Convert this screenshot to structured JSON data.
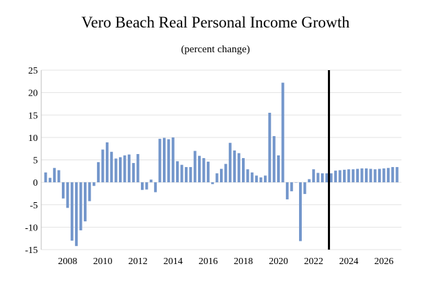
{
  "chart_data": {
    "type": "bar",
    "title": "Vero Beach Real Personal Income Growth",
    "subtitle": "(percent change)",
    "xlabel": "",
    "ylabel": "",
    "ylim": [
      -15,
      25
    ],
    "yticks": [
      25,
      20,
      15,
      10,
      5,
      0,
      -5,
      -10,
      -15
    ],
    "xtick_labels": [
      "2008",
      "2010",
      "2012",
      "2014",
      "2016",
      "2018",
      "2020",
      "2022",
      "2024",
      "2026"
    ],
    "grid": "horizontal",
    "legend": "none",
    "bar_color": "#7396CB",
    "marker_color": "#000000",
    "forecast_start": "2023 Q3",
    "quarters": [
      "2007 Q2",
      "2007 Q3",
      "2007 Q4",
      "2008 Q1",
      "2008 Q2",
      "2008 Q3",
      "2008 Q4",
      "2009 Q1",
      "2009 Q2",
      "2009 Q3",
      "2009 Q4",
      "2010 Q1",
      "2010 Q2",
      "2010 Q3",
      "2010 Q4",
      "2011 Q1",
      "2011 Q2",
      "2011 Q3",
      "2011 Q4",
      "2012 Q1",
      "2012 Q2",
      "2012 Q3",
      "2012 Q4",
      "2013 Q1",
      "2013 Q2",
      "2013 Q3",
      "2013 Q4",
      "2014 Q1",
      "2014 Q2",
      "2014 Q3",
      "2014 Q4",
      "2015 Q1",
      "2015 Q2",
      "2015 Q3",
      "2015 Q4",
      "2016 Q1",
      "2016 Q2",
      "2016 Q3",
      "2016 Q4",
      "2017 Q1",
      "2017 Q2",
      "2017 Q3",
      "2017 Q4",
      "2018 Q1",
      "2018 Q2",
      "2018 Q3",
      "2018 Q4",
      "2019 Q1",
      "2019 Q2",
      "2019 Q3",
      "2019 Q4",
      "2020 Q1",
      "2020 Q2",
      "2020 Q3",
      "2020 Q4",
      "2021 Q1",
      "2021 Q2",
      "2021 Q3",
      "2021 Q4",
      "2022 Q1",
      "2022 Q2",
      "2022 Q3",
      "2022 Q4",
      "2023 Q1",
      "2023 Q2",
      "2023 Q3",
      "2023 Q4",
      "2024 Q1",
      "2024 Q2",
      "2024 Q3",
      "2024 Q4",
      "2025 Q1",
      "2025 Q2",
      "2025 Q3",
      "2025 Q4",
      "2026 Q1",
      "2026 Q2",
      "2026 Q3",
      "2026 Q4",
      "2027 Q1",
      "2027 Q2"
    ],
    "values": [
      2.2,
      1.0,
      3.2,
      2.7,
      -3.6,
      -5.7,
      -13.0,
      -14.2,
      -10.7,
      -8.7,
      -4.2,
      -0.8,
      4.5,
      7.3,
      8.9,
      6.8,
      5.3,
      5.6,
      6.0,
      6.2,
      4.3,
      6.3,
      -1.7,
      -1.6,
      0.6,
      -2.2,
      9.7,
      9.9,
      9.6,
      10.0,
      4.7,
      3.9,
      3.4,
      3.4,
      7.0,
      5.9,
      5.4,
      4.6,
      -0.4,
      2.0,
      3.0,
      4.1,
      8.8,
      7.1,
      6.5,
      5.4,
      2.9,
      2.2,
      1.5,
      1.1,
      1.5,
      15.5,
      10.3,
      6.0,
      22.2,
      -3.8,
      -2.0,
      0.0,
      -13.1,
      -2.6,
      0.7,
      2.9,
      2.1,
      2.0,
      2.0,
      2.0,
      2.6,
      2.7,
      2.8,
      2.9,
      2.9,
      3.0,
      3.1,
      3.1,
      3.0,
      2.9,
      3.0,
      3.1,
      3.2,
      3.4,
      3.4
    ]
  }
}
